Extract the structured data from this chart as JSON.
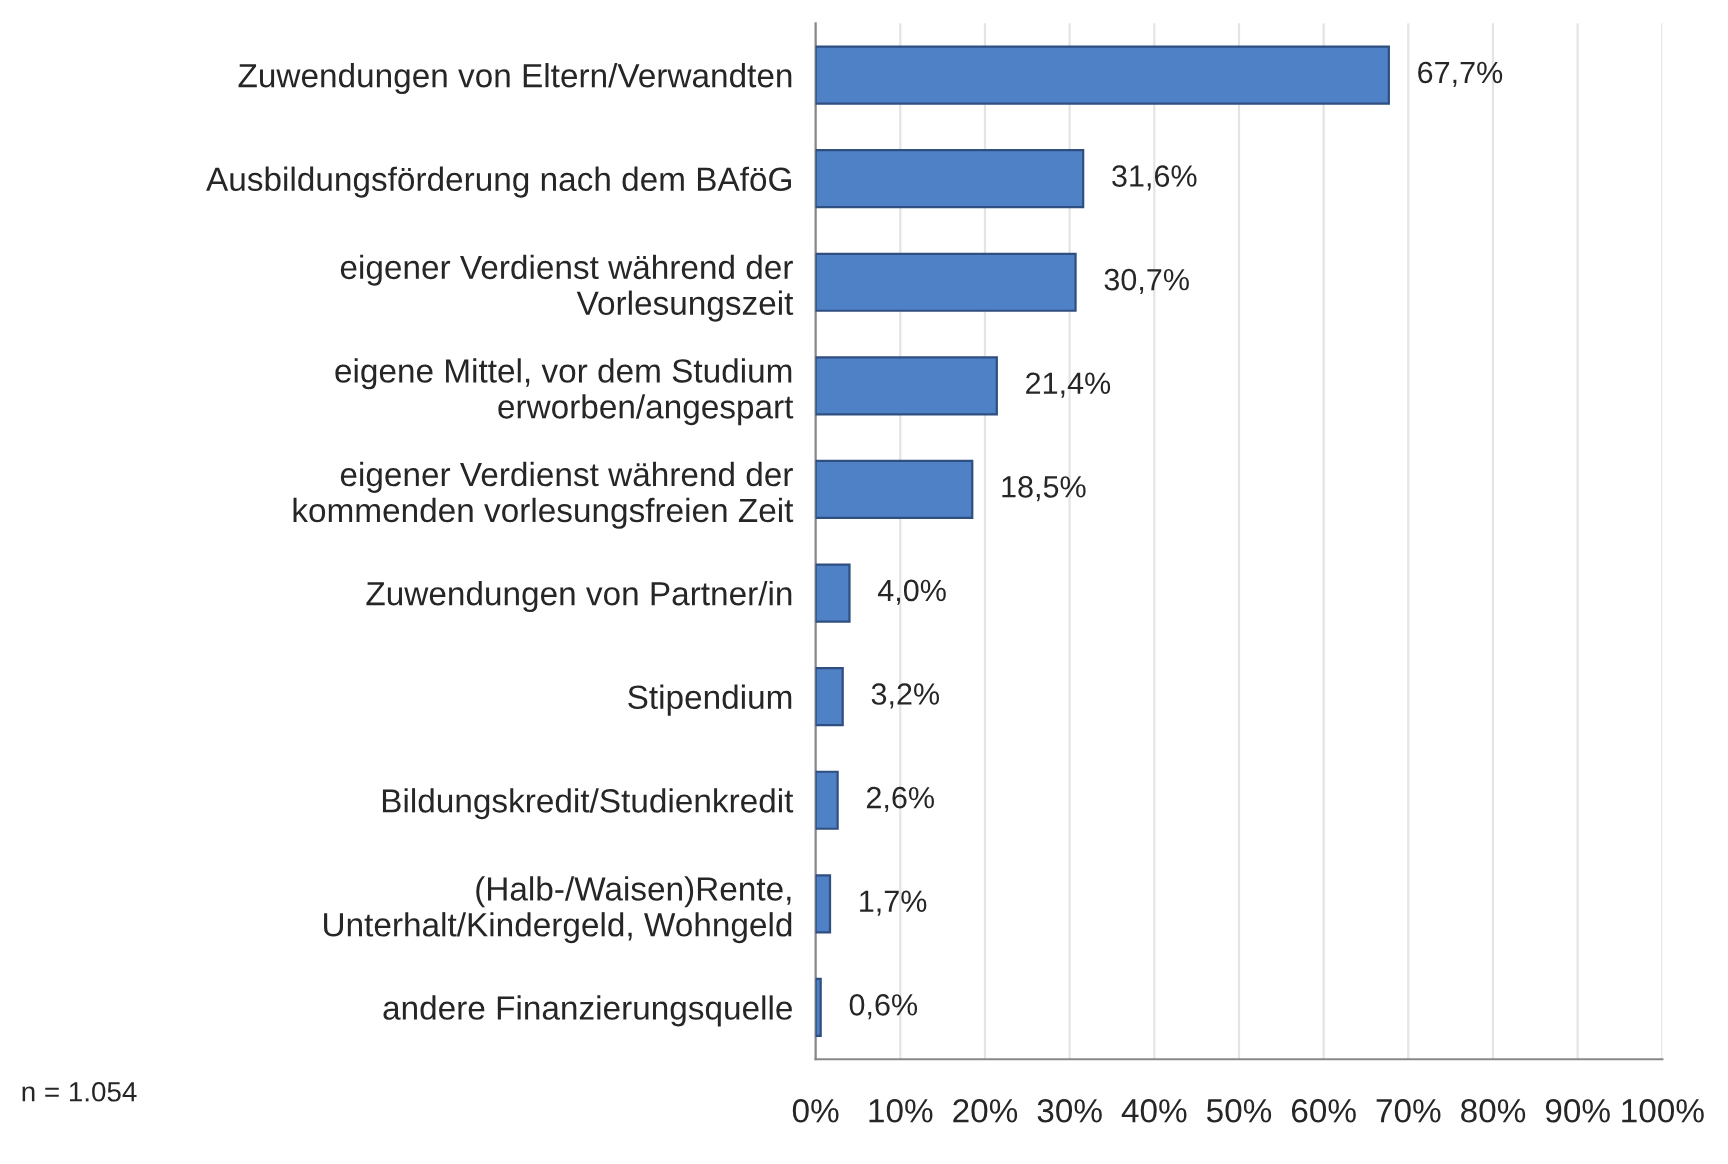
{
  "chart_data": {
    "type": "bar",
    "orientation": "horizontal",
    "categories": [
      "Zuwendungen von Eltern/Verwandten",
      "Ausbildungsförderung nach dem BAföG",
      "eigener Verdienst während der\nVorlesungszeit",
      "eigene Mittel, vor dem Studium\nerworben/angespart",
      "eigener Verdienst während der\nkommenden vorlesungsfreien Zeit",
      "Zuwendungen von Partner/in",
      "Stipendium",
      "Bildungskredit/Studienkredit",
      "(Halb-/Waisen)Rente,\nUnterhalt/Kindergeld, Wohngeld",
      "andere Finanzierungsquelle"
    ],
    "values": [
      67.7,
      31.6,
      30.7,
      21.4,
      18.5,
      4.0,
      3.2,
      2.6,
      1.7,
      0.6
    ],
    "value_labels": [
      "67,7%",
      "31,6%",
      "30,7%",
      "21,4%",
      "18,5%",
      "4,0%",
      "3,2%",
      "2,6%",
      "1,7%",
      "0,6%"
    ],
    "color": "#4f81c7",
    "xlim": [
      0,
      100
    ],
    "xticks": [
      {
        "value": 0,
        "label": "0%"
      },
      {
        "value": 10,
        "label": "10%"
      },
      {
        "value": 20,
        "label": "20%"
      },
      {
        "value": 30,
        "label": "30%"
      },
      {
        "value": 40,
        "label": "40%"
      },
      {
        "value": 50,
        "label": "50%"
      },
      {
        "value": 60,
        "label": "60%"
      },
      {
        "value": 70,
        "label": "70%"
      },
      {
        "value": 80,
        "label": "80%"
      },
      {
        "value": 90,
        "label": "90%"
      },
      {
        "value": 100,
        "label": "100%"
      }
    ],
    "grid": "x",
    "annotations": [
      "n = 1.054"
    ]
  }
}
